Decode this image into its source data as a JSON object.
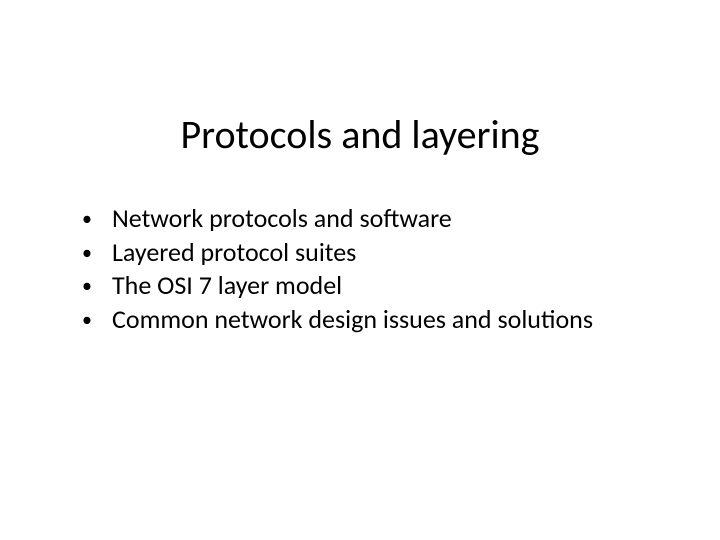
{
  "slide": {
    "title": "Protocols and layering",
    "bullets": [
      "Network protocols and software",
      "Layered protocol suites",
      "The OSI 7 layer model",
      "Common network design issues and solutions"
    ]
  },
  "styling": {
    "background_color": "#ffffff",
    "text_color": "#000000",
    "title_fontsize": 40,
    "title_weight": 400,
    "body_fontsize": 26,
    "font_family": "Calibri",
    "title_align": "center",
    "bullet_char": "•",
    "padding_top": 110,
    "bullets_left_padding": 82,
    "bullet_indent": 30
  }
}
